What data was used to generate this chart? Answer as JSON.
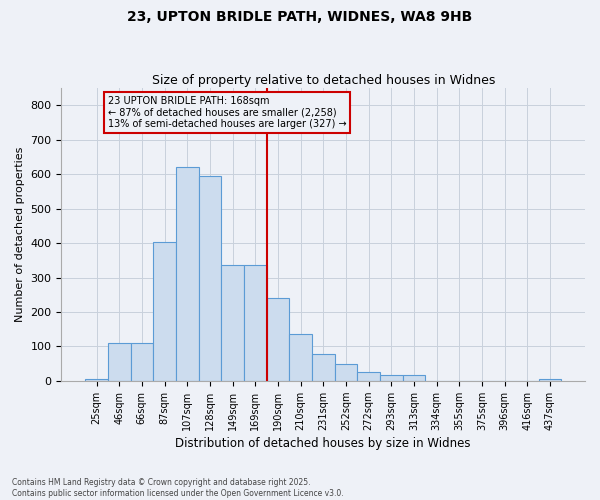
{
  "title_line1": "23, UPTON BRIDLE PATH, WIDNES, WA8 9HB",
  "title_line2": "Size of property relative to detached houses in Widnes",
  "xlabel": "Distribution of detached houses by size in Widnes",
  "ylabel": "Number of detached properties",
  "bar_labels": [
    "25sqm",
    "46sqm",
    "66sqm",
    "87sqm",
    "107sqm",
    "128sqm",
    "149sqm",
    "169sqm",
    "190sqm",
    "210sqm",
    "231sqm",
    "252sqm",
    "272sqm",
    "293sqm",
    "313sqm",
    "334sqm",
    "355sqm",
    "375sqm",
    "396sqm",
    "416sqm",
    "437sqm"
  ],
  "bar_heights": [
    5,
    110,
    110,
    403,
    620,
    594,
    335,
    335,
    240,
    135,
    78,
    50,
    25,
    16,
    16,
    0,
    0,
    0,
    0,
    0,
    5
  ],
  "bar_color": "#ccdcee",
  "bar_edge_color": "#5b9bd5",
  "grid_color": "#c8d0dc",
  "bg_color": "#eef1f7",
  "vline_index": 7,
  "vline_color": "#cc0000",
  "annotation_text": "23 UPTON BRIDLE PATH: 168sqm\n← 87% of detached houses are smaller (2,258)\n13% of semi-detached houses are larger (327) →",
  "ylim_max": 850,
  "yticks": [
    0,
    100,
    200,
    300,
    400,
    500,
    600,
    700,
    800
  ],
  "footer_line1": "Contains HM Land Registry data © Crown copyright and database right 2025.",
  "footer_line2": "Contains public sector information licensed under the Open Government Licence v3.0."
}
